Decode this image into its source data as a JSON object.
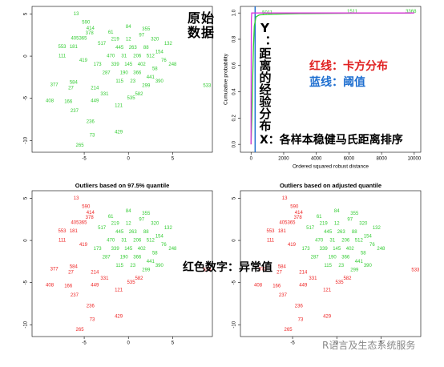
{
  "chart_data": [
    {
      "type": "scatter",
      "xlim": [
        -10.9,
        9.5
      ],
      "ylim": [
        -11.4,
        5.9
      ],
      "xticks": [
        -5,
        0,
        5
      ],
      "yticks": [
        5,
        0,
        -5,
        -10
      ],
      "series": [
        {
          "color": "#33cc33",
          "x": [
            0,
            1.5,
            3,
            -1,
            0.5,
            2,
            3.5,
            -2,
            -0.5,
            1,
            2.5,
            4,
            -1.5,
            0,
            1.5,
            3,
            -2.5,
            -0.5,
            1,
            2.5,
            -1,
            0.5,
            2,
            -3,
            -2,
            4.5,
            5,
            3.5,
            -3.5,
            0,
            2,
            -1.5
          ],
          "y": [
            2,
            2.5,
            2,
            1,
            1,
            1,
            0.5,
            0,
            0,
            0,
            0,
            -0.5,
            -1,
            -1,
            -1,
            -1.5,
            -2,
            -2,
            -2,
            -2.5,
            -3,
            -3,
            -3.5,
            1.5,
            2.8,
            1.5,
            -1,
            -3,
            -1,
            3.5,
            3.2,
            2
          ],
          "labels": [
            "12",
            "97",
            "320",
            "445",
            "263",
            "88",
            "154",
            "470",
            "31",
            "206",
            "512",
            "76",
            "339",
            "145",
            "402",
            "58",
            "287",
            "190",
            "366",
            "441",
            "115",
            "23",
            "299",
            "517",
            "61",
            "132",
            "248",
            "390",
            "173",
            "84",
            "355",
            "219"
          ]
        },
        {
          "color": "#33cc33",
          "x": [
            -5.9,
            -4.8,
            -4.3,
            -4.4,
            -5.6,
            -7.5,
            -6.2,
            -7.5,
            -5.1,
            -8.4,
            -6.2,
            -6.5,
            -8.9,
            -6.8,
            -3.8,
            -3.8,
            -6.1,
            -4.3,
            -4.1,
            -1.1,
            -5.5,
            0.3,
            1.2,
            -1.1,
            -2.7,
            8.9
          ],
          "y": [
            5.0,
            4.0,
            3.3,
            2.7,
            2.1,
            1.1,
            1.1,
            0,
            -0.5,
            -3.4,
            -3.1,
            -3.8,
            -5.3,
            -5.4,
            -3.8,
            -5.3,
            -6.5,
            -7.8,
            -9.4,
            -9.0,
            -10.6,
            -5.0,
            -4.5,
            -5.9,
            -4.5,
            -3.5
          ],
          "labels": [
            "13",
            "590",
            "414",
            "378",
            "405365",
            "553",
            "181",
            "111",
            "419",
            "377",
            "584",
            "27",
            "408",
            "166",
            "214",
            "449",
            "237",
            "236",
            "73",
            "429",
            "265",
            "535",
            "582",
            "121",
            "331",
            "533"
          ]
        }
      ]
    },
    {
      "type": "line",
      "xlabel": "Ordered squared robust distance",
      "ylabel": "Cumulative probability",
      "xlim": [
        -650,
        10400
      ],
      "ylim": [
        -0.06,
        1.05
      ],
      "xticks": [
        0,
        2000,
        4000,
        6000,
        8000,
        10000
      ],
      "yticks": [
        {
          "value": 0,
          "label": "0.0"
        },
        {
          "value": 0.2,
          "label": "0.2"
        },
        {
          "value": 0.4,
          "label": "0.4"
        },
        {
          "value": 0.6,
          "label": "0.6"
        },
        {
          "value": 0.8,
          "label": "0.8"
        },
        {
          "value": 1,
          "label": "1.0"
        }
      ],
      "threshold": 250,
      "threshold_color": "#1f6fd0",
      "series": [
        {
          "color": "#33cc33",
          "x": [
            0,
            50,
            100,
            150,
            200,
            300,
            500,
            1000,
            3000,
            6200,
            9800
          ],
          "values": [
            0,
            0.2,
            0.5,
            0.75,
            0.9,
            0.97,
            0.985,
            0.99,
            0.995,
            0.998,
            1
          ],
          "labels": [
            null,
            null,
            null,
            null,
            null,
            null,
            null,
            "5011",
            null,
            "1511",
            "3368"
          ]
        },
        {
          "color": "#dd33dd",
          "x": [
            0,
            10,
            20,
            40,
            10000
          ],
          "values": [
            0,
            0.6,
            0.95,
            1,
            1
          ]
        }
      ]
    },
    {
      "type": "scatter",
      "title": "Outliers based on 97.5% quantile",
      "xlim": [
        -10.9,
        9.5
      ],
      "ylim": [
        -11.4,
        5.9
      ],
      "xticks": [
        -5,
        0,
        5
      ],
      "yticks": [
        5,
        0,
        -5,
        -10
      ],
      "series": [
        {
          "color": "#33cc33",
          "x": [
            0,
            1.5,
            3,
            -1,
            0.5,
            2,
            3.5,
            -2,
            -0.5,
            1,
            2.5,
            4,
            -1.5,
            0,
            1.5,
            3,
            -2.5,
            -0.5,
            1,
            2.5,
            -1,
            0.5,
            2,
            -3,
            -2,
            4.5,
            5,
            3.5,
            -3.5,
            0,
            2,
            -1.5
          ],
          "y": [
            2,
            2.5,
            2,
            1,
            1,
            1,
            0.5,
            0,
            0,
            0,
            0,
            -0.5,
            -1,
            -1,
            -1,
            -1.5,
            -2,
            -2,
            -2,
            -2.5,
            -3,
            -3,
            -3.5,
            1.5,
            2.8,
            1.5,
            -1,
            -3,
            -1,
            3.5,
            3.2,
            2
          ],
          "labels": [
            "12",
            "97",
            "320",
            "445",
            "263",
            "88",
            "154",
            "470",
            "31",
            "206",
            "512",
            "76",
            "339",
            "145",
            "402",
            "58",
            "287",
            "190",
            "366",
            "441",
            "115",
            "23",
            "299",
            "517",
            "61",
            "132",
            "248",
            "390",
            "173",
            "84",
            "355",
            "219"
          ]
        },
        {
          "color": "#ee2222",
          "x": [
            -5.9,
            -4.8,
            -4.3,
            -4.4,
            -5.6,
            -7.5,
            -6.2,
            -7.5,
            -5.1,
            -8.4,
            -6.2,
            -6.5,
            -8.9,
            -6.8,
            -3.8,
            -3.8,
            -6.1,
            -4.3,
            -4.1,
            -1.1,
            -5.5,
            0.3,
            1.2,
            -1.1,
            -2.7,
            8.9
          ],
          "y": [
            5.0,
            4.0,
            3.3,
            2.7,
            2.1,
            1.1,
            1.1,
            0,
            -0.5,
            -3.4,
            -3.1,
            -3.8,
            -5.3,
            -5.4,
            -3.8,
            -5.3,
            -6.5,
            -7.8,
            -9.4,
            -9.0,
            -10.6,
            -5.0,
            -4.5,
            -5.9,
            -4.5,
            -3.5
          ],
          "labels": [
            "13",
            "590",
            "414",
            "378",
            "405365",
            "553",
            "181",
            "111",
            "419",
            "377",
            "584",
            "27",
            "408",
            "166",
            "214",
            "449",
            "237",
            "236",
            "73",
            "429",
            "265",
            "535",
            "582",
            "121",
            "331",
            "533"
          ]
        }
      ]
    },
    {
      "type": "scatter",
      "title": "Outliers based on adjusted quantile",
      "xlim": [
        -10.9,
        9.5
      ],
      "ylim": [
        -11.4,
        5.9
      ],
      "xticks": [
        -5,
        0,
        5
      ],
      "yticks": [
        5,
        0,
        -5,
        -10
      ],
      "series": [
        {
          "color": "#33cc33",
          "x": [
            0,
            1.5,
            3,
            -1,
            0.5,
            2,
            3.5,
            -2,
            -0.5,
            1,
            2.5,
            4,
            -1.5,
            0,
            1.5,
            3,
            -2.5,
            -0.5,
            1,
            2.5,
            -1,
            0.5,
            2,
            -3,
            -2,
            4.5,
            5,
            3.5,
            -3.5,
            0,
            2,
            -1.5
          ],
          "y": [
            2,
            2.5,
            2,
            1,
            1,
            1,
            0.5,
            0,
            0,
            0,
            0,
            -0.5,
            -1,
            -1,
            -1,
            -1.5,
            -2,
            -2,
            -2,
            -2.5,
            -3,
            -3,
            -3.5,
            1.5,
            2.8,
            1.5,
            -1,
            -3,
            -1,
            3.5,
            3.2,
            2
          ],
          "labels": [
            "12",
            "97",
            "320",
            "445",
            "263",
            "88",
            "154",
            "470",
            "31",
            "206",
            "512",
            "76",
            "339",
            "145",
            "402",
            "58",
            "287",
            "190",
            "366",
            "441",
            "115",
            "23",
            "299",
            "517",
            "61",
            "132",
            "248",
            "390",
            "173",
            "84",
            "355",
            "219"
          ]
        },
        {
          "color": "#ee2222",
          "x": [
            -5.9,
            -4.8,
            -4.3,
            -4.4,
            -5.6,
            -7.5,
            -6.2,
            -7.5,
            -5.1,
            -8.4,
            -6.2,
            -6.5,
            -8.9,
            -6.8,
            -3.8,
            -3.8,
            -6.1,
            -4.3,
            -4.1,
            -1.1,
            -5.5,
            0.3,
            1.2,
            -1.1,
            -2.7,
            8.9
          ],
          "y": [
            5.0,
            4.0,
            3.3,
            2.7,
            2.1,
            1.1,
            1.1,
            0,
            -0.5,
            -3.4,
            -3.1,
            -3.8,
            -5.3,
            -5.4,
            -3.8,
            -5.3,
            -6.5,
            -7.8,
            -9.4,
            -9.0,
            -10.6,
            -5.0,
            -4.5,
            -5.9,
            -4.5,
            -3.5
          ],
          "labels": [
            "13",
            "590",
            "414",
            "378",
            "405365",
            "553",
            "181",
            "111",
            "419",
            "377",
            "584",
            "27",
            "408",
            "166",
            "214",
            "449",
            "237",
            "236",
            "73",
            "429",
            "265",
            "535",
            "582",
            "121",
            "331",
            "533"
          ]
        }
      ]
    }
  ],
  "annotations": {
    "raw": "原始数据",
    "y_note": "Y：距离的经验分布",
    "x_note": "X：各样本稳健马氏距离排序",
    "red_line": "红线：卡方分布",
    "blue_line": "蓝线：阈值",
    "outlier_note": "红色数字：异常值",
    "watermark": "R语言及生态系统服务"
  }
}
